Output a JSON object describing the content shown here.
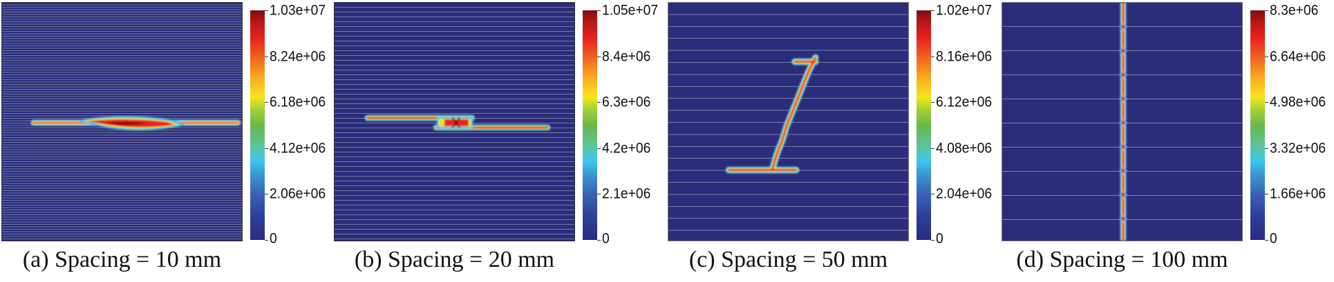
{
  "chart_data": [
    {
      "type": "heatmap",
      "title": "(a) Spacing = 10 mm",
      "spacing_mm": 10,
      "colorbar": {
        "min": 0,
        "max": 10300000,
        "ticks": [
          0,
          2060000,
          4120000,
          6180000,
          8240000,
          10300000
        ],
        "tick_labels": [
          "0",
          "2.06e+06",
          "4.12e+06",
          "6.18e+06",
          "8.24e+06",
          "1.03e+07"
        ]
      }
    },
    {
      "type": "heatmap",
      "title": "(b) Spacing = 20 mm",
      "spacing_mm": 20,
      "colorbar": {
        "min": 0,
        "max": 10500000,
        "ticks": [
          0,
          2100000,
          4200000,
          6300000,
          8400000,
          10500000
        ],
        "tick_labels": [
          "0",
          "2.1e+06",
          "4.2e+06",
          "6.3e+06",
          "8.4e+06",
          "1.05e+07"
        ]
      }
    },
    {
      "type": "heatmap",
      "title": "(c) Spacing = 50 mm",
      "spacing_mm": 50,
      "colorbar": {
        "min": 0,
        "max": 10200000,
        "ticks": [
          0,
          2040000,
          4080000,
          6120000,
          8160000,
          10200000
        ],
        "tick_labels": [
          "0",
          "2.04e+06",
          "4.08e+06",
          "6.12e+06",
          "8.16e+06",
          "1.02e+07"
        ]
      }
    },
    {
      "type": "heatmap",
      "title": "(d) Spacing = 100 mm",
      "spacing_mm": 100,
      "colorbar": {
        "min": 0,
        "max": 8300000,
        "ticks": [
          0,
          1660000,
          3320000,
          4980000,
          6640000,
          8300000
        ],
        "tick_labels": [
          "0",
          "1.66e+06",
          "3.32e+06",
          "4.98e+06",
          "6.64e+06",
          "8.3e+06"
        ]
      }
    }
  ]
}
